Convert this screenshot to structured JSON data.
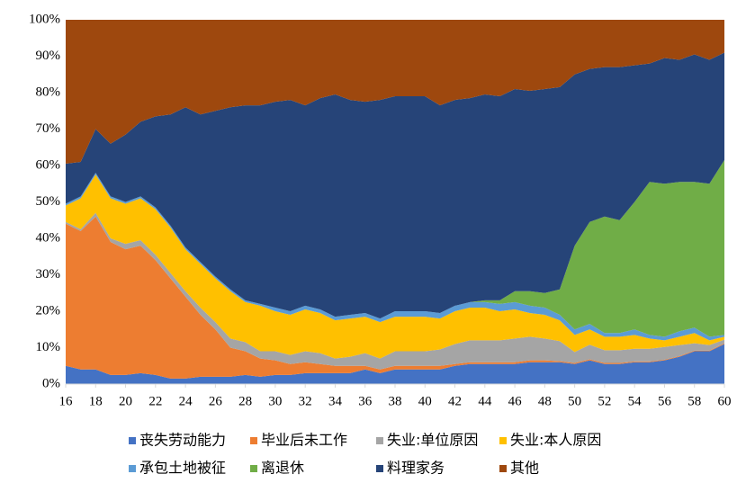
{
  "chart_data": {
    "type": "stacked_area",
    "x": [
      16,
      17,
      18,
      19,
      20,
      21,
      22,
      23,
      24,
      25,
      26,
      27,
      28,
      29,
      30,
      31,
      32,
      33,
      34,
      35,
      36,
      37,
      38,
      39,
      40,
      41,
      42,
      43,
      44,
      45,
      46,
      47,
      48,
      49,
      50,
      51,
      52,
      53,
      54,
      55,
      56,
      57,
      58,
      59,
      60
    ],
    "xlim": [
      16,
      60
    ],
    "xticks": [
      16,
      18,
      20,
      22,
      24,
      26,
      28,
      30,
      32,
      34,
      36,
      38,
      40,
      42,
      44,
      46,
      48,
      50,
      52,
      54,
      56,
      58,
      60
    ],
    "ylim": [
      0,
      100
    ],
    "yticks": [
      {
        "value": 0,
        "label": "0%"
      },
      {
        "value": 10,
        "label": "10%"
      },
      {
        "value": 20,
        "label": "20%"
      },
      {
        "value": 30,
        "label": "30%"
      },
      {
        "value": 40,
        "label": "40%"
      },
      {
        "value": 50,
        "label": "50%"
      },
      {
        "value": 60,
        "label": "60%"
      },
      {
        "value": 70,
        "label": "70%"
      },
      {
        "value": 80,
        "label": "80%"
      },
      {
        "value": 90,
        "label": "90%"
      },
      {
        "value": 100,
        "label": "100%"
      }
    ],
    "legend": "bottom",
    "series": [
      {
        "name": "丧失劳动能力",
        "color": "#4472c4",
        "values": [
          5,
          4,
          4,
          2.5,
          2.5,
          3,
          2.5,
          1.5,
          1.5,
          2,
          2,
          2,
          2.5,
          2,
          2.5,
          2.5,
          3,
          3,
          3,
          3,
          4,
          3,
          4,
          4,
          4,
          4,
          5,
          5.5,
          5.5,
          5.5,
          5.5,
          6,
          6,
          6,
          5.5,
          6.5,
          5.5,
          5.5,
          6,
          6,
          6.5,
          7.5,
          9,
          9,
          11
        ]
      },
      {
        "name": "毕业后未工作",
        "color": "#ed7d31",
        "values": [
          39,
          38,
          42,
          36.5,
          34.5,
          35,
          31.5,
          27.5,
          22.5,
          17,
          13,
          8,
          6.5,
          5,
          4,
          3,
          3,
          2.5,
          2,
          2,
          1,
          1,
          1,
          1,
          1,
          1,
          0.5,
          0.5,
          0.5,
          0.5,
          0.5,
          0.5,
          0.5,
          0.3,
          0.3,
          0.3,
          0.3,
          0.3,
          0.2,
          0.2,
          0.2,
          0.2,
          0.2,
          0.2,
          0.2
        ]
      },
      {
        "name": "失业:单位原因",
        "color": "#a5a5a5",
        "values": [
          0.5,
          0.5,
          1,
          1,
          1.5,
          1.5,
          1.5,
          1.5,
          1.5,
          2,
          2,
          2.5,
          2.5,
          2,
          2.5,
          2.5,
          3,
          3,
          2,
          2.5,
          3.5,
          3,
          4,
          4,
          4,
          4.5,
          5.5,
          6,
          6,
          6,
          6.5,
          6.5,
          6,
          5.5,
          3,
          4,
          3.5,
          3.5,
          3.5,
          3.5,
          3.5,
          3,
          2,
          1.5,
          1
        ]
      },
      {
        "name": "失业:本人原因",
        "color": "#ffc000",
        "values": [
          4.5,
          8.5,
          10.5,
          11,
          11,
          11.5,
          12.5,
          12.5,
          11.5,
          12,
          12,
          13,
          11,
          12.5,
          11,
          11,
          11.5,
          11,
          10.5,
          10.5,
          10,
          10,
          9.5,
          9.5,
          9.5,
          8.5,
          9,
          9,
          9,
          8,
          8,
          6.5,
          6.5,
          5.7,
          4.7,
          4.2,
          3.7,
          3.7,
          3.8,
          2.8,
          1.8,
          2.3,
          2.8,
          1.3,
          0.8
        ]
      },
      {
        "name": "承包土地被征",
        "color": "#5b9bd5",
        "values": [
          0.5,
          0.5,
          0.5,
          0.5,
          0.5,
          0.5,
          0.5,
          0.5,
          0.5,
          0.5,
          0.5,
          0.5,
          0.5,
          0.5,
          1,
          1,
          1,
          1,
          1,
          1,
          1,
          1,
          1.5,
          1.5,
          1.5,
          1.5,
          1.5,
          1.5,
          1.5,
          2,
          2,
          2,
          2,
          1.5,
          1.5,
          1.5,
          1,
          1,
          1.5,
          1,
          1,
          1.5,
          1.5,
          1,
          0.5
        ]
      },
      {
        "name": "离退休",
        "color": "#70ad47",
        "values": [
          0,
          0,
          0,
          0,
          0,
          0,
          0,
          0,
          0,
          0,
          0,
          0,
          0,
          0,
          0,
          0,
          0,
          0,
          0,
          0,
          0,
          0,
          0,
          0,
          0,
          0,
          0,
          0,
          0.5,
          1,
          3,
          4,
          4,
          7,
          23,
          28,
          32,
          31,
          35,
          42,
          42,
          41,
          40,
          42,
          48
        ]
      },
      {
        "name": "料理家务",
        "color": "#264478",
        "values": [
          11,
          9.5,
          12,
          14.5,
          18.5,
          20.5,
          25,
          30.5,
          38.5,
          40.5,
          45.5,
          50,
          53.5,
          54.5,
          56.5,
          58,
          55,
          58,
          61,
          59,
          58,
          60,
          59,
          59,
          59,
          57,
          56.5,
          56,
          56.5,
          56,
          55.5,
          55,
          56,
          55.5,
          47,
          42,
          41,
          42,
          37.5,
          32.5,
          34.5,
          33.5,
          35,
          34,
          29.5
        ]
      },
      {
        "name": "其他",
        "color": "#9e480e",
        "values": [
          39.5,
          39,
          30,
          34,
          31.5,
          28,
          26.5,
          26,
          24,
          26,
          25,
          24,
          23.5,
          23.5,
          22.5,
          22,
          23.5,
          21.5,
          20.5,
          22,
          22.5,
          22,
          21,
          21,
          21,
          23.5,
          22,
          21.5,
          20.5,
          21,
          19,
          19.5,
          19,
          18.5,
          15,
          13.5,
          13,
          13,
          12.5,
          12,
          10.5,
          11,
          9.5,
          11,
          9
        ]
      }
    ]
  }
}
